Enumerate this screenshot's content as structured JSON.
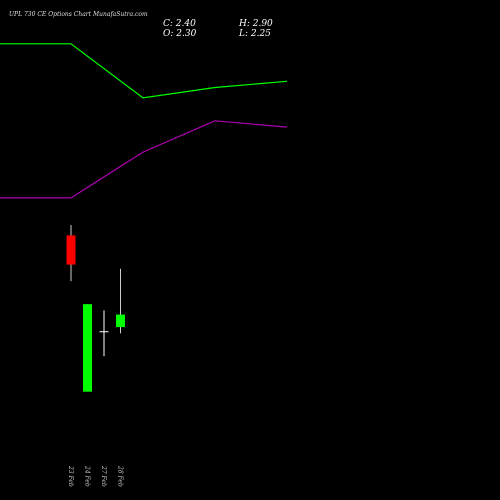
{
  "header": {
    "title": "UPL 730 CE Options Chart MunafaSutra.com",
    "close_label": "C: 2.40",
    "open_label": "O: 2.30",
    "high_label": "H: 2.90",
    "low_label": "L: 2.25"
  },
  "chart_data": {
    "type": "candlestick",
    "title": "UPL 730 CE Options Chart MunafaSutra.com",
    "xlabel": "",
    "ylabel": "",
    "grid": false,
    "ylim": [
      0,
      12
    ],
    "categories": [
      "23 Feb",
      "24 Feb",
      "27 Feb",
      "28 Feb"
    ],
    "candles": [
      {
        "open": 6.35,
        "high": 6.6,
        "low": 5.25,
        "close": 5.65,
        "color": "#ff0000"
      },
      {
        "open": 2.6,
        "high": 4.7,
        "low": 2.6,
        "close": 4.7,
        "color": "#00ff00"
      },
      {
        "open": 4.05,
        "high": 4.55,
        "low": 3.45,
        "close": 4.05,
        "color": "#ffffff"
      },
      {
        "open": 4.15,
        "high": 5.55,
        "low": 4.0,
        "close": 4.45,
        "color": "#00ff00"
      }
    ],
    "series": [
      {
        "x": [
          0,
          1,
          2,
          3,
          4
        ],
        "values": [
          10.95,
          10.95,
          9.65,
          9.9,
          10.05
        ],
        "color": "#00ff00"
      },
      {
        "x": [
          0,
          1,
          2,
          3,
          4
        ],
        "values": [
          7.25,
          7.25,
          8.35,
          9.1,
          8.95
        ],
        "color": "#b000b0"
      }
    ],
    "colors": {
      "background": "#000000",
      "up": "#00ff00",
      "down": "#ff0000",
      "doji": "#ffffff"
    }
  }
}
